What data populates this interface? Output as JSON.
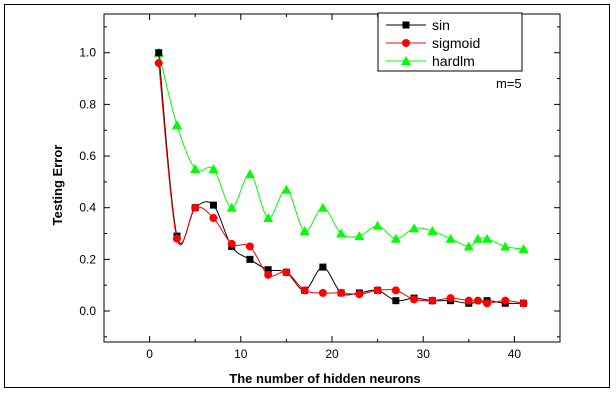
{
  "chart_data": {
    "type": "line",
    "title": "",
    "xlabel": "The number of hidden neurons",
    "ylabel": "Testing Error",
    "xlim": [
      -5,
      45
    ],
    "ylim": [
      -0.12,
      1.15
    ],
    "xticks": [
      0,
      10,
      20,
      30,
      40
    ],
    "xtick_labels": [
      "0",
      "10",
      "20",
      "30",
      "40"
    ],
    "yticks": [
      0.0,
      0.2,
      0.4,
      0.6,
      0.8,
      1.0
    ],
    "ytick_labels": [
      "0.0",
      "0.2",
      "0.4",
      "0.6",
      "0.8",
      "1.0"
    ],
    "annotation": "m=5",
    "legend_position": "top-right",
    "grid": false,
    "series": [
      {
        "name": "sin",
        "color": "#000000",
        "marker": "square",
        "x": [
          1,
          3,
          5,
          7,
          9,
          11,
          13,
          15,
          17,
          19,
          21,
          23,
          25,
          27,
          29,
          31,
          33,
          35,
          37,
          39,
          41
        ],
        "y": [
          1.0,
          0.29,
          0.4,
          0.41,
          0.25,
          0.2,
          0.16,
          0.15,
          0.08,
          0.17,
          0.07,
          0.07,
          0.08,
          0.04,
          0.05,
          0.04,
          0.04,
          0.03,
          0.04,
          0.03,
          0.03
        ]
      },
      {
        "name": "sigmoid",
        "color": "#ff0000",
        "marker": "circle",
        "x": [
          1,
          3,
          5,
          7,
          9,
          11,
          13,
          15,
          17,
          19,
          21,
          23,
          25,
          27,
          29,
          31,
          33,
          35,
          36,
          37,
          39,
          41
        ],
        "y": [
          0.96,
          0.28,
          0.4,
          0.36,
          0.26,
          0.25,
          0.14,
          0.15,
          0.08,
          0.07,
          0.07,
          0.065,
          0.08,
          0.08,
          0.045,
          0.04,
          0.05,
          0.04,
          0.04,
          0.03,
          0.04,
          0.03
        ]
      },
      {
        "name": "hardlm",
        "color": "#00ff00",
        "marker": "triangle",
        "x": [
          1,
          3,
          5,
          7,
          9,
          11,
          13,
          15,
          17,
          19,
          21,
          23,
          25,
          27,
          29,
          31,
          33,
          35,
          36,
          37,
          39,
          41
        ],
        "y": [
          1.0,
          0.72,
          0.55,
          0.55,
          0.4,
          0.53,
          0.36,
          0.47,
          0.31,
          0.4,
          0.3,
          0.29,
          0.33,
          0.28,
          0.32,
          0.31,
          0.28,
          0.25,
          0.28,
          0.28,
          0.25,
          0.24
        ]
      }
    ]
  }
}
